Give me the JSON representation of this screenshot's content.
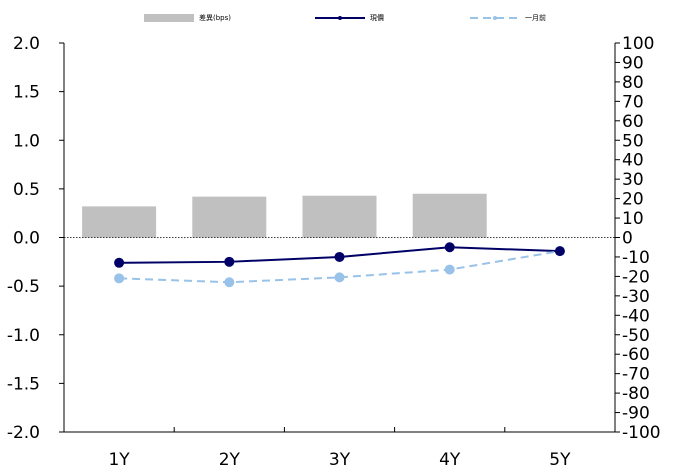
{
  "chart_data": {
    "type": "bar",
    "categories": [
      "1Y",
      "2Y",
      "3Y",
      "4Y",
      "5Y"
    ],
    "series": [
      {
        "name": "差異(bps)",
        "type": "bar",
        "axis": "right",
        "values": [
          16,
          21,
          21.5,
          22.5,
          0
        ],
        "color": "#c0c0c0"
      },
      {
        "name": "現價",
        "type": "line",
        "axis": "left",
        "values": [
          -0.26,
          -0.25,
          -0.2,
          -0.1,
          -0.14
        ],
        "color": "#000066",
        "style": "solid"
      },
      {
        "name": "一月前",
        "type": "line",
        "axis": "left",
        "values": [
          -0.42,
          -0.46,
          -0.41,
          -0.33,
          -0.14
        ],
        "color": "#99c2e8",
        "style": "dashed"
      }
    ],
    "left_axis": {
      "ylim": [
        -2.0,
        2.0
      ],
      "ticks": [
        "2.0",
        "1.5",
        "1.0",
        "0.5",
        "0.0",
        "-0.5",
        "-1.0",
        "-1.5",
        "-2.0"
      ]
    },
    "right_axis": {
      "ylim": [
        -100,
        100
      ],
      "ticks": [
        "100",
        "90",
        "80",
        "70",
        "60",
        "50",
        "40",
        "30",
        "20",
        "10",
        "0",
        "-10",
        "-20",
        "-30",
        "-40",
        "-50",
        "-60",
        "-70",
        "-80",
        "-90",
        "-100"
      ]
    },
    "legend": "top",
    "grid": false,
    "title": "",
    "xlabel": "",
    "ylabel": ""
  }
}
